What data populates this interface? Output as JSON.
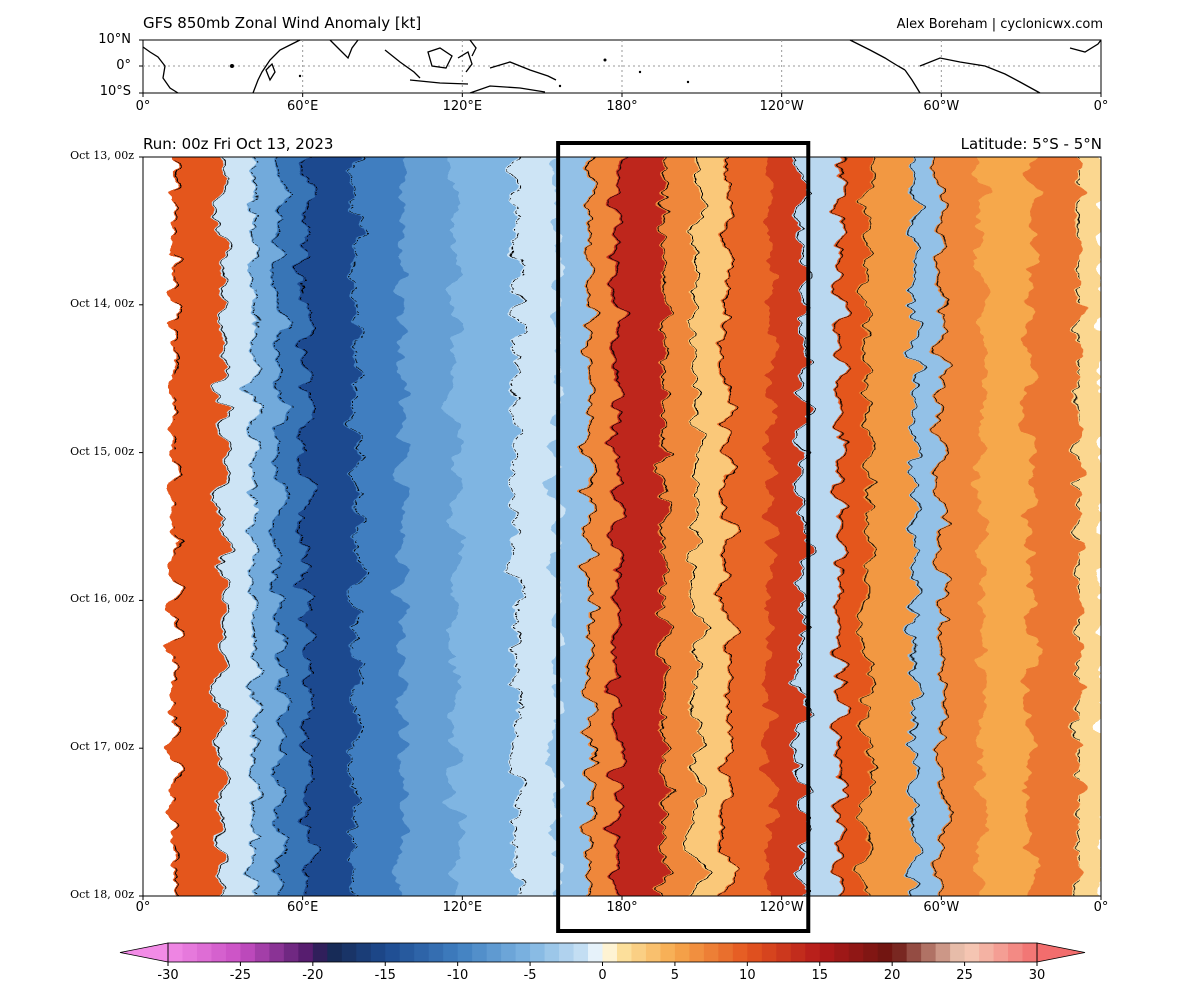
{
  "header": {
    "title": "GFS 850mb Zonal Wind Anomaly [kt]",
    "credit": "Alex Boreham | cyclonicwx.com",
    "run": "Run: 00z Fri Oct 13, 2023",
    "latitude": "Latitude: 5°S - 5°N"
  },
  "map": {
    "lat_labels": [
      "10°N",
      "0°",
      "10°S"
    ],
    "lon_labels": [
      "0°",
      "60°E",
      "120°E",
      "180°",
      "120°W",
      "60°W",
      "0°"
    ]
  },
  "chart_data": {
    "type": "heatmap",
    "title": "GFS 850mb Zonal Wind Anomaly [kt]",
    "x_axis": {
      "ticks": [
        "0°",
        "60°E",
        "120°E",
        "180°",
        "120°W",
        "60°W",
        "0°"
      ],
      "tick_longitudes_east": [
        0,
        60,
        120,
        180,
        240,
        300,
        360
      ],
      "range": [
        0,
        360
      ]
    },
    "y_axis": {
      "ticks": [
        "Oct 13, 00z",
        "Oct 14, 00z",
        "Oct 15, 00z",
        "Oct 16, 00z",
        "Oct 17, 00z",
        "Oct 18, 00z"
      ],
      "tick_hours": [
        0,
        24,
        48,
        72,
        96,
        120
      ],
      "direction": "time increases downward"
    },
    "colorbar": {
      "ticks": [
        "-30",
        "-25",
        "-20",
        "-15",
        "-10",
        "-5",
        "0",
        "5",
        "10",
        "15",
        "20",
        "25",
        "30"
      ],
      "range": [
        -30,
        30
      ],
      "extend": "both"
    },
    "highlight_box": {
      "lon_range": [
        156,
        250
      ],
      "style": "thick black rectangle"
    },
    "contours": {
      "levels": [
        -15,
        -10,
        -5,
        5,
        10,
        15
      ],
      "negative_style": "dotted",
      "positive_style": "solid"
    },
    "regions": [
      {
        "lon_range": [
          0,
          12
        ],
        "approx_value": 0
      },
      {
        "lon_range": [
          12,
          30
        ],
        "approx_value": 10
      },
      {
        "lon_range": [
          30,
          42
        ],
        "approx_value": -1
      },
      {
        "lon_range": [
          42,
          52
        ],
        "approx_value": -6
      },
      {
        "lon_range": [
          52,
          62
        ],
        "approx_value": -11
      },
      {
        "lon_range": [
          62,
          80
        ],
        "approx_value": -15
      },
      {
        "lon_range": [
          80,
          98
        ],
        "approx_value": -10
      },
      {
        "lon_range": [
          98,
          118
        ],
        "approx_value": -7
      },
      {
        "lon_range": [
          118,
          140
        ],
        "approx_value": -5
      },
      {
        "lon_range": [
          140,
          156
        ],
        "approx_value": -1
      },
      {
        "lon_range": [
          156,
          168
        ],
        "approx_value": -4
      },
      {
        "lon_range": [
          168,
          178
        ],
        "approx_value": 7
      },
      {
        "lon_range": [
          178,
          196
        ],
        "approx_value": 14
      },
      {
        "lon_range": [
          196,
          208
        ],
        "approx_value": 7
      },
      {
        "lon_range": [
          208,
          220
        ],
        "approx_value": 3
      },
      {
        "lon_range": [
          220,
          236
        ],
        "approx_value": 9
      },
      {
        "lon_range": [
          236,
          248
        ],
        "approx_value": 12
      },
      {
        "lon_range": [
          248,
          262
        ],
        "approx_value": -2
      },
      {
        "lon_range": [
          262,
          272
        ],
        "approx_value": 10
      },
      {
        "lon_range": [
          272,
          290
        ],
        "approx_value": 6
      },
      {
        "lon_range": [
          290,
          300
        ],
        "approx_value": -4
      },
      {
        "lon_range": [
          300,
          316
        ],
        "approx_value": 7
      },
      {
        "lon_range": [
          316,
          334
        ],
        "approx_value": 5
      },
      {
        "lon_range": [
          334,
          352
        ],
        "approx_value": 8
      },
      {
        "lon_range": [
          352,
          360
        ],
        "approx_value": 2
      }
    ],
    "colors": {
      "stops": [
        {
          "v": -30,
          "c": "#f28be6"
        },
        {
          "v": -25,
          "c": "#c94fc4"
        },
        {
          "v": -20,
          "c": "#4a1766"
        },
        {
          "v": -19,
          "c": "#16264f"
        },
        {
          "v": -15,
          "c": "#1d4a8f"
        },
        {
          "v": -10,
          "c": "#3f7ec0"
        },
        {
          "v": -5,
          "c": "#7fb5e2"
        },
        {
          "v": -1,
          "c": "#cde4f5"
        },
        {
          "v": 0,
          "c": "#ffffff"
        },
        {
          "v": 1,
          "c": "#fde7a6"
        },
        {
          "v": 5,
          "c": "#f6a84c"
        },
        {
          "v": 10,
          "c": "#e4561f"
        },
        {
          "v": 15,
          "c": "#b41a1a"
        },
        {
          "v": 20,
          "c": "#6b1410"
        },
        {
          "v": 25,
          "c": "#f5cfba"
        },
        {
          "v": 30,
          "c": "#f26d6d"
        }
      ],
      "land": "#000000",
      "box": "#000000"
    }
  }
}
